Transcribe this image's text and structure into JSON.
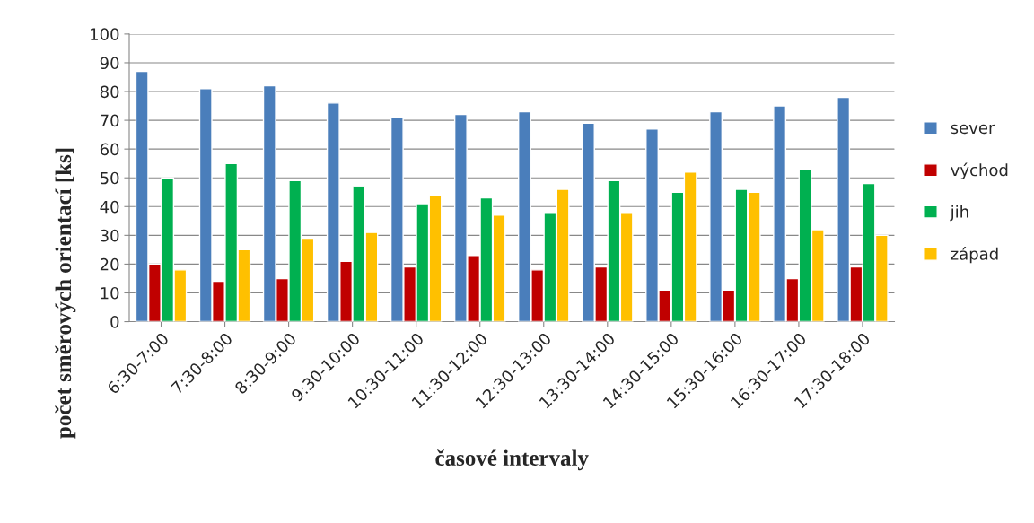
{
  "chart_data": {
    "type": "bar",
    "xlabel": "časové intervaly",
    "ylabel": "počet směrových orientací [ks]",
    "categories": [
      "6:30-7:00",
      "7:30-8:00",
      "8:30-9:00",
      "9:30-10:00",
      "10:30-11:00",
      "11:30-12:00",
      "12:30-13:00",
      "13:30-14:00",
      "14:30-15:00",
      "15:30-16:00",
      "16:30-17:00",
      "17:30-18:00"
    ],
    "series": [
      {
        "name": "sever",
        "color": "#4a7ebb",
        "values": [
          87,
          81,
          82,
          76,
          71,
          72,
          73,
          69,
          67,
          73,
          75,
          78
        ]
      },
      {
        "name": "východ",
        "color": "#c00000",
        "values": [
          20,
          14,
          15,
          21,
          19,
          23,
          18,
          19,
          11,
          11,
          15,
          19
        ]
      },
      {
        "name": "jih",
        "color": "#00b050",
        "values": [
          50,
          55,
          49,
          47,
          41,
          43,
          38,
          49,
          45,
          46,
          53,
          48
        ]
      },
      {
        "name": "západ",
        "color": "#ffc000",
        "values": [
          18,
          25,
          29,
          31,
          44,
          37,
          46,
          38,
          52,
          45,
          32,
          30
        ]
      }
    ],
    "ylim": [
      0,
      100
    ],
    "yticks": [
      0,
      10,
      20,
      30,
      40,
      50,
      60,
      70,
      80,
      90,
      100
    ],
    "grid": "y",
    "legend": "right"
  }
}
